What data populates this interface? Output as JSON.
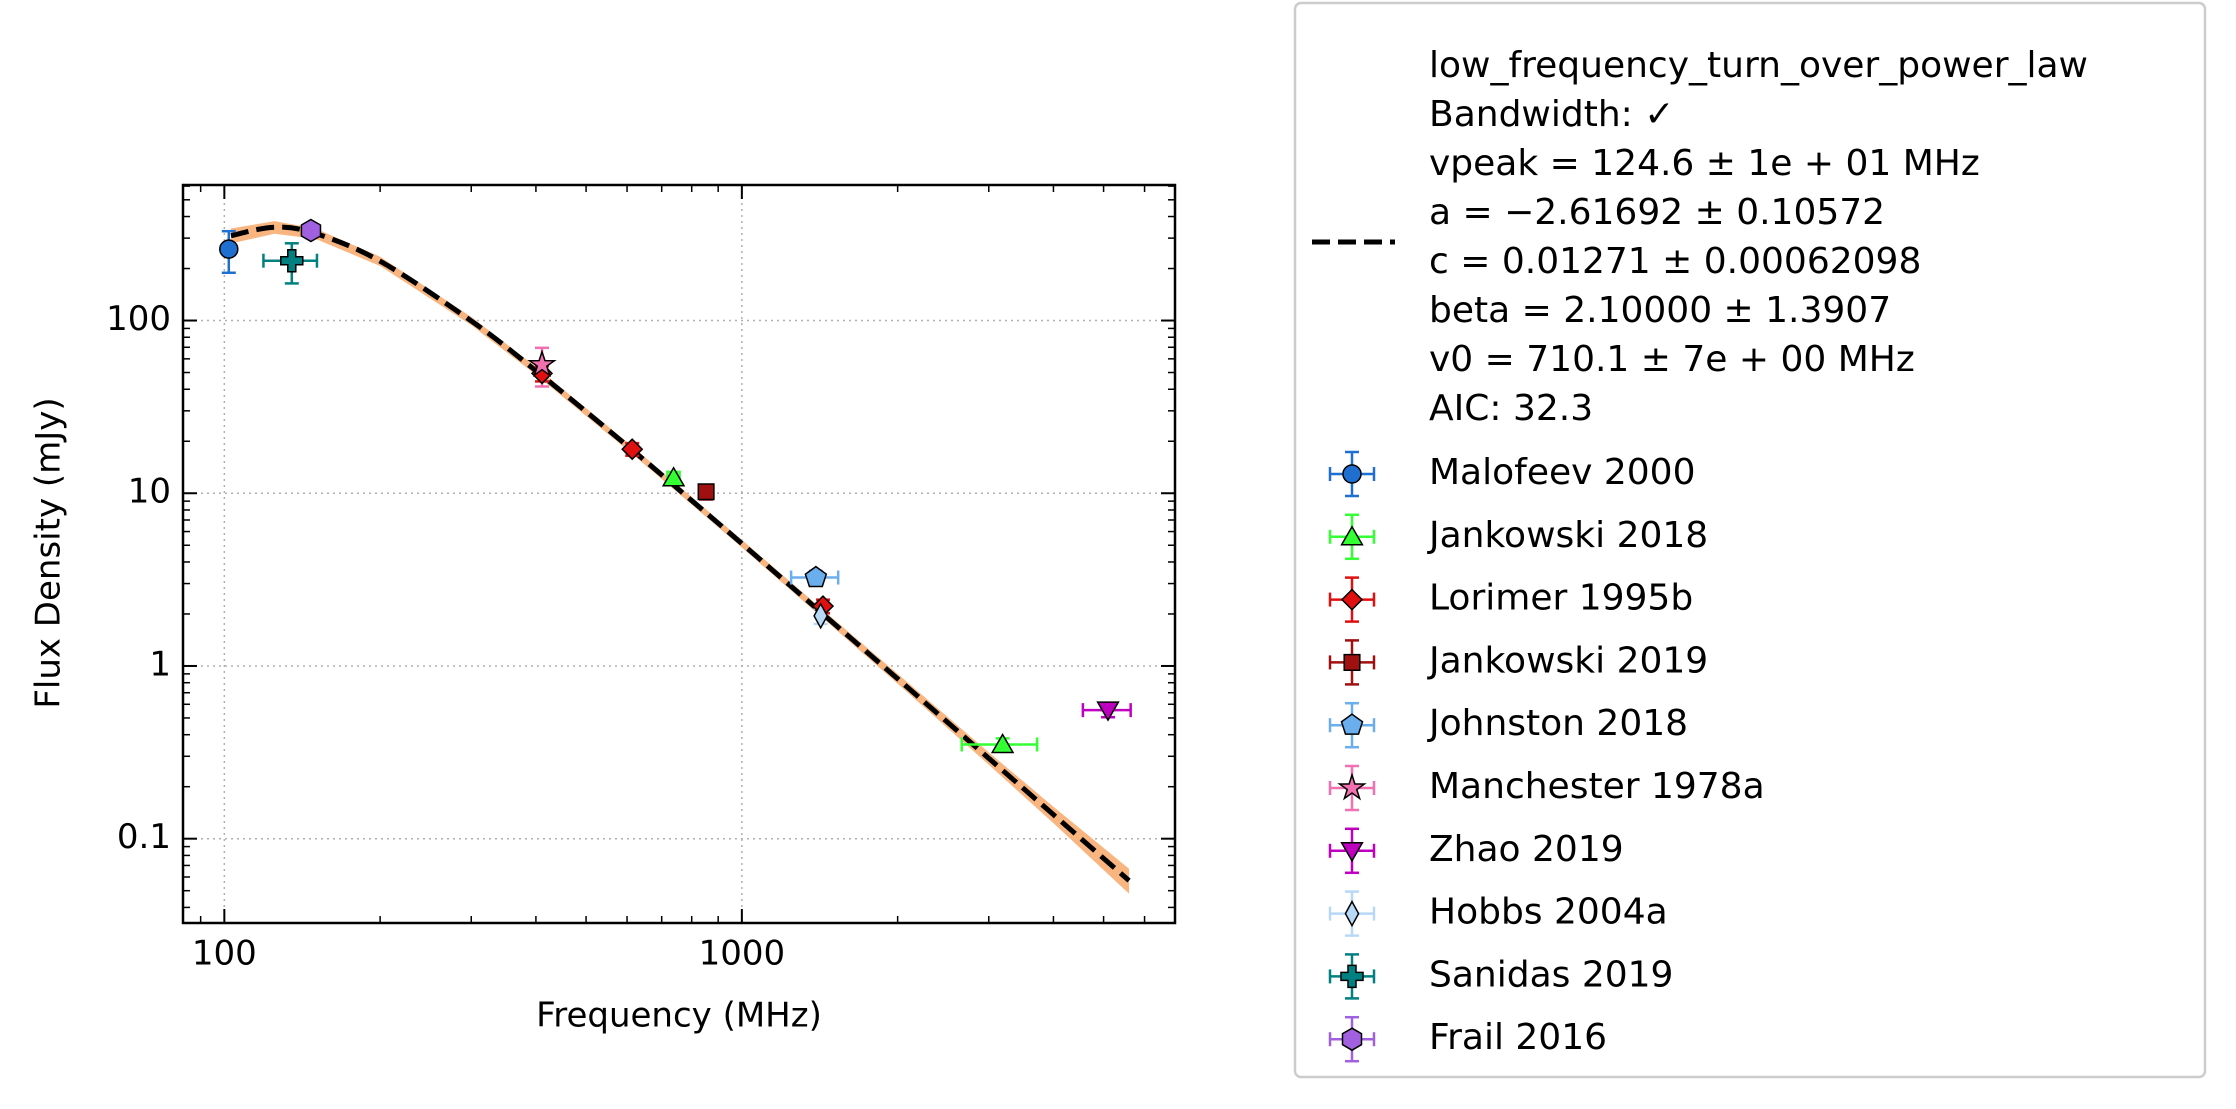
{
  "chart_data": {
    "type": "scatter",
    "xlabel": "Frequency (MHz)",
    "ylabel": "Flux Density (mJy)",
    "log_x": true,
    "log_y": true,
    "grid": true,
    "legend": "outside right",
    "xlim": [
      83.2,
      6870
    ],
    "xticks": [
      100,
      1000
    ],
    "xminorticks": [
      90,
      200,
      300,
      400,
      500,
      600,
      700,
      800,
      900,
      2000,
      3000,
      4000,
      5000,
      6000
    ],
    "ylim": [
      0.0325,
      609
    ],
    "yticks": [
      {
        "value": 0.1,
        "label": "0.1"
      },
      1,
      10,
      100
    ],
    "yminorticks": [
      0.04,
      0.05,
      0.06,
      0.07,
      0.08,
      0.09,
      0.2,
      0.3,
      0.4,
      0.5,
      0.6,
      0.7,
      0.8,
      0.9,
      2,
      3,
      4,
      5,
      6,
      7,
      8,
      9,
      20,
      30,
      40,
      50,
      60,
      70,
      80,
      90,
      200,
      300,
      400,
      500,
      600
    ],
    "fit": {
      "label_lines": [
        "low_frequency_turn_over_power_law",
        "Bandwidth: ✓",
        "vpeak = 124.6 ± 1e + 01 MHz",
        "a = −2.61692 ± 0.10572",
        "c = 0.01271 ± 0.00062098",
        "beta = 2.10000 ± 1.3907",
        "v0 = 710.1 ± 7e + 00 MHz",
        "AIC: 32.3"
      ],
      "color": "#000000",
      "band_color": "#f9b57f",
      "x": [
        103,
        125,
        150,
        200,
        300,
        400,
        600,
        800,
        1000,
        1500,
        2000,
        3000,
        4000,
        5600
      ],
      "values": [
        309.7,
        347,
        319,
        220.7,
        99.5,
        51.2,
        18.87,
        9.07,
        5.11,
        1.78,
        0.843,
        0.292,
        0.1378,
        0.0572
      ],
      "lower": [
        279,
        318,
        297,
        207,
        94,
        48.5,
        17.9,
        8.6,
        4.85,
        1.68,
        0.79,
        0.268,
        0.123,
        0.048
      ],
      "upper": [
        341,
        376,
        341,
        234,
        105,
        53.9,
        19.8,
        9.5,
        5.37,
        1.88,
        0.9,
        0.316,
        0.153,
        0.067
      ]
    },
    "series": [
      {
        "name": "Malofeev 2000",
        "color": "#1f6fd0",
        "marker": "o",
        "x": [
          102
        ],
        "values": [
          259
        ],
        "xerr": [
          0
        ],
        "yerr": [
          70
        ]
      },
      {
        "name": "Jankowski 2018",
        "color": "#33ff33",
        "marker": "^",
        "x": [
          738,
          3190
        ],
        "values": [
          12.3,
          0.351
        ],
        "xerr": [
          20,
          530
        ],
        "yerr": [
          1,
          0.03
        ]
      },
      {
        "name": "Lorimer 1995b",
        "color": "#e01010",
        "marker": "D",
        "x": [
          411,
          614,
          1435
        ],
        "values": [
          49.4,
          18.0,
          2.22
        ],
        "xerr": [
          0,
          0,
          0
        ],
        "yerr": [
          5,
          1.5,
          0.2
        ]
      },
      {
        "name": "Jankowski 2019",
        "color": "#a01010",
        "marker": "s",
        "x": [
          853
        ],
        "values": [
          10.2
        ],
        "xerr": [
          0
        ],
        "yerr": [
          1
        ]
      },
      {
        "name": "Johnston 2018",
        "color": "#6aaeee",
        "marker": "p",
        "x": [
          1390
        ],
        "values": [
          3.25
        ],
        "xerr": [
          145
        ],
        "yerr": [
          0.3
        ]
      },
      {
        "name": "Manchester 1978a",
        "color": "#f070b0",
        "marker": "*",
        "x": [
          411
        ],
        "values": [
          55.5
        ],
        "xerr": [
          0
        ],
        "yerr": [
          14
        ]
      },
      {
        "name": "Zhao 2019",
        "color": "#c000c0",
        "marker": "v",
        "x": [
          5100
        ],
        "values": [
          0.555
        ],
        "xerr": [
          540
        ],
        "yerr": [
          0.05
        ]
      },
      {
        "name": "Hobbs 2004a",
        "color": "#b8d8f8",
        "marker": "d",
        "x": [
          1420
        ],
        "values": [
          1.95
        ],
        "xerr": [
          0
        ],
        "yerr": [
          0.2
        ]
      },
      {
        "name": "Sanidas 2019",
        "color": "#008080",
        "marker": "P",
        "x": [
          135
        ],
        "values": [
          222
        ],
        "xerr": [
          16
        ],
        "yerr": [
          58
        ]
      },
      {
        "name": "Frail 2016",
        "color": "#a060e0",
        "marker": "h",
        "x": [
          147
        ],
        "values": [
          332
        ],
        "xerr": [
          0
        ],
        "yerr": [
          20
        ]
      }
    ]
  }
}
